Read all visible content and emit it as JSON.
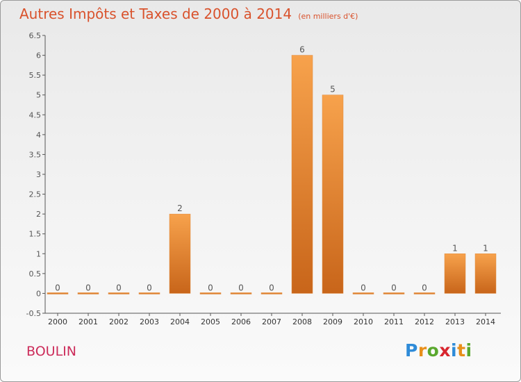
{
  "chart_data": {
    "type": "bar",
    "title": "Autres Impôts et Taxes de 2000 à 2014",
    "subtitle": "(en milliers d'€)",
    "xlabel": "",
    "ylabel": "",
    "categories": [
      "2000",
      "2001",
      "2002",
      "2003",
      "2004",
      "2005",
      "2006",
      "2007",
      "2008",
      "2009",
      "2010",
      "2011",
      "2012",
      "2013",
      "2014"
    ],
    "values": [
      0,
      0,
      0,
      0,
      2,
      0,
      0,
      0,
      6,
      5,
      0,
      0,
      0,
      1,
      1
    ],
    "data_labels": [
      "0",
      "0",
      "0",
      "0",
      "2",
      "0",
      "0",
      "0",
      "6",
      "5",
      "0",
      "0",
      "0",
      "1",
      "1"
    ],
    "yticks": [
      "-0.5",
      "0",
      "0.5",
      "1",
      "1.5",
      "2",
      "2.5",
      "3",
      "3.5",
      "4",
      "4.5",
      "5",
      "5.5",
      "6",
      "6.5"
    ],
    "ylim": [
      -0.5,
      6.5
    ],
    "grid": false,
    "legend": "none",
    "colors": {
      "bar_light": "#f7a24c",
      "bar_dark": "#c8651a",
      "axis": "#555555",
      "label": "#555555"
    }
  },
  "footer": {
    "commune": "BOULIN",
    "logo": {
      "letters": [
        "P",
        "r",
        "o",
        "x",
        "i",
        "t",
        "i"
      ],
      "colors": [
        "#2e8bd8",
        "#e88f1a",
        "#5aa82e",
        "#d8262f",
        "#2e8bd8",
        "#e88f1a",
        "#5aa82e"
      ]
    }
  }
}
